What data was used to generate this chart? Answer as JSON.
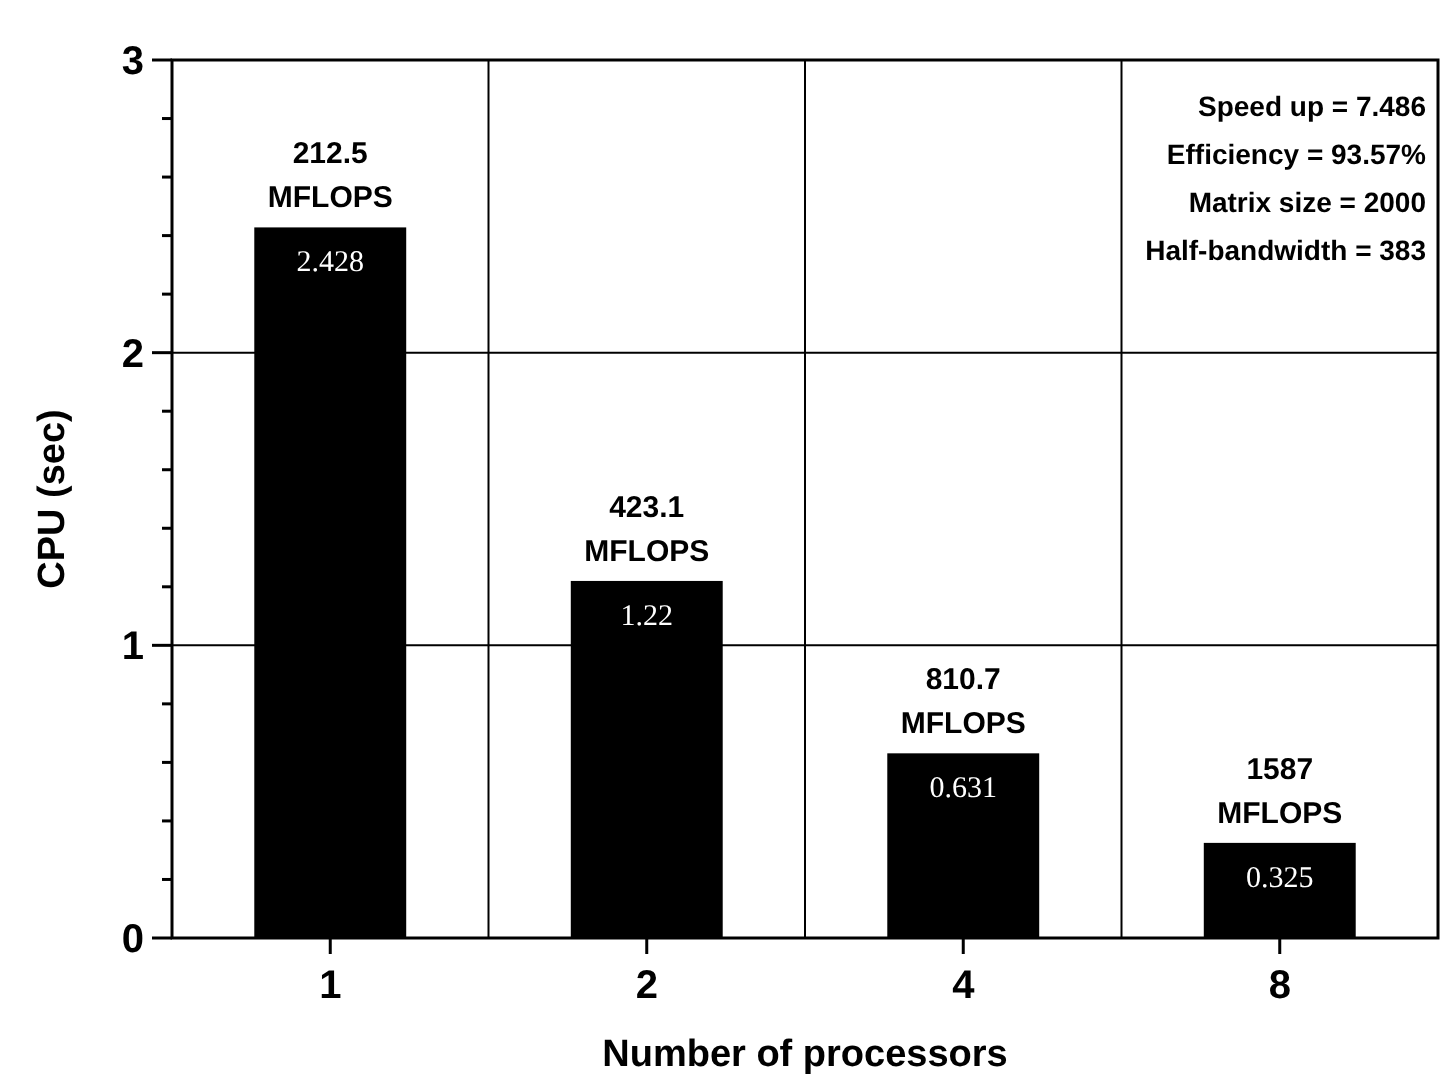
{
  "chart_data": {
    "type": "bar",
    "xlabel": "Number of processors",
    "ylabel": "CPU (sec)",
    "categories": [
      "1",
      "2",
      "4",
      "8"
    ],
    "values": [
      2.428,
      1.22,
      0.631,
      0.325
    ],
    "color": "#000000",
    "data_labels": true,
    "ylim": [
      0,
      3
    ],
    "yticks": [
      0,
      {
        "value": 0.2,
        "label": null
      },
      {
        "value": 0.4,
        "label": null
      },
      {
        "value": 0.6,
        "label": null
      },
      {
        "value": 0.8,
        "label": null
      },
      1,
      {
        "value": 1.2,
        "label": null
      },
      {
        "value": 1.4,
        "label": null
      },
      {
        "value": 1.6,
        "label": null
      },
      {
        "value": 1.8,
        "label": null
      },
      2,
      {
        "value": 2.2,
        "label": null
      },
      {
        "value": 2.4,
        "label": null
      },
      {
        "value": 2.6,
        "label": null
      },
      {
        "value": 2.8,
        "label": null
      },
      3
    ],
    "grid": true,
    "annotations": [
      {
        "text": "212.5\nMFLOPS",
        "x": "1",
        "y": 2.428
      },
      {
        "text": "423.1\nMFLOPS",
        "x": "2",
        "y": 1.22
      },
      {
        "text": "810.7\nMFLOPS",
        "x": "4",
        "y": 0.631
      },
      {
        "text": "1587\nMFLOPS",
        "x": "8",
        "y": 0.325
      },
      "Speed up = 7.486",
      "Efficiency = 93.57%",
      "Matrix size = 2000",
      "Half-bandwidth = 383"
    ]
  }
}
